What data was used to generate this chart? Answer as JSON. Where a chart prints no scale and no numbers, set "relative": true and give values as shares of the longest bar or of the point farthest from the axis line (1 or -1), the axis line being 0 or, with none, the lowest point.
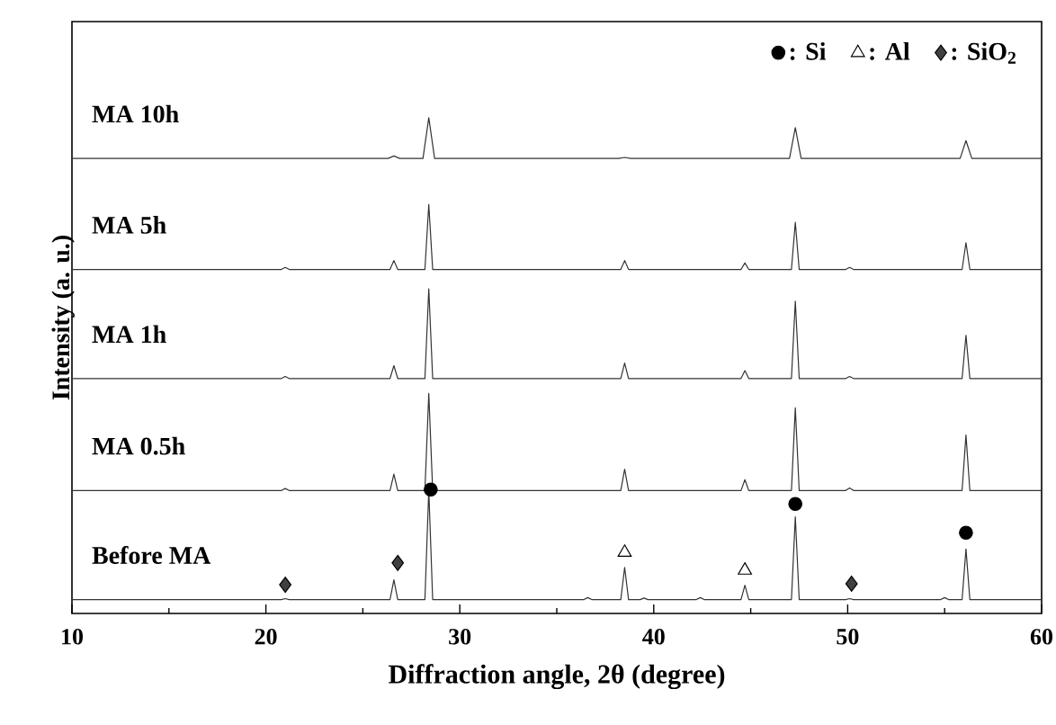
{
  "chart_data": {
    "type": "line",
    "relative": true,
    "xlabel": "Diffraction angle, 2θ (degree)",
    "ylabel": "Intensity (a. u.)",
    "xlim": [
      10,
      60
    ],
    "xticks": [
      10,
      20,
      30,
      40,
      50,
      60
    ],
    "legend": "top right",
    "grid": false,
    "series": [
      {
        "name": "MA 10h",
        "color": "#333333",
        "x": [
          10,
          26.3,
          26.6,
          26.9,
          28.1,
          28.4,
          28.7,
          38.2,
          38.5,
          38.8,
          47.0,
          47.3,
          47.6,
          55.8,
          56.1,
          56.4,
          60
        ],
        "values": [
          0.918,
          0.918,
          0.923,
          0.918,
          0.918,
          1.0,
          0.918,
          0.918,
          0.92,
          0.918,
          0.918,
          0.98,
          0.918,
          0.918,
          0.954,
          0.918,
          0.918
        ]
      },
      {
        "name": "MA 5h",
        "color": "#333333",
        "x": [
          10,
          20.8,
          21.0,
          21.2,
          26.4,
          26.6,
          26.8,
          28.2,
          28.4,
          28.6,
          38.3,
          38.5,
          38.7,
          44.5,
          44.7,
          44.9,
          47.1,
          47.3,
          47.5,
          49.9,
          50.1,
          50.3,
          55.9,
          56.1,
          56.3,
          60
        ],
        "values": [
          0.694,
          0.694,
          0.698,
          0.694,
          0.694,
          0.712,
          0.694,
          0.694,
          0.825,
          0.694,
          0.694,
          0.712,
          0.694,
          0.694,
          0.707,
          0.694,
          0.694,
          0.789,
          0.694,
          0.694,
          0.698,
          0.694,
          0.694,
          0.748,
          0.694,
          0.694
        ]
      },
      {
        "name": "MA 1h",
        "color": "#333333",
        "x": [
          10,
          20.8,
          21.0,
          21.2,
          26.4,
          26.6,
          26.8,
          28.2,
          28.4,
          28.6,
          38.3,
          38.5,
          38.7,
          44.5,
          44.7,
          44.9,
          47.1,
          47.3,
          47.5,
          49.9,
          50.1,
          50.3,
          55.9,
          56.1,
          56.3,
          60
        ],
        "values": [
          0.474,
          0.474,
          0.478,
          0.474,
          0.474,
          0.5,
          0.474,
          0.474,
          0.655,
          0.474,
          0.474,
          0.505,
          0.474,
          0.474,
          0.49,
          0.474,
          0.474,
          0.63,
          0.474,
          0.474,
          0.478,
          0.474,
          0.474,
          0.561,
          0.474,
          0.474
        ]
      },
      {
        "name": "MA 0.5h",
        "color": "#333333",
        "x": [
          10,
          20.8,
          21.0,
          21.2,
          26.4,
          26.6,
          26.8,
          28.2,
          28.4,
          28.6,
          38.3,
          38.5,
          38.7,
          44.5,
          44.7,
          44.9,
          47.1,
          47.3,
          47.5,
          49.9,
          50.1,
          50.3,
          55.9,
          56.1,
          56.3,
          60
        ],
        "values": [
          0.248,
          0.248,
          0.252,
          0.248,
          0.248,
          0.281,
          0.248,
          0.248,
          0.444,
          0.248,
          0.248,
          0.291,
          0.248,
          0.248,
          0.27,
          0.248,
          0.248,
          0.415,
          0.248,
          0.248,
          0.253,
          0.248,
          0.248,
          0.36,
          0.248,
          0.248
        ]
      },
      {
        "name": "Before MA",
        "color": "#333333",
        "x": [
          10,
          20.8,
          21.0,
          21.2,
          26.4,
          26.6,
          26.8,
          28.2,
          28.4,
          28.6,
          36.4,
          36.6,
          36.8,
          38.3,
          38.5,
          38.7,
          39.3,
          39.5,
          39.7,
          42.2,
          42.4,
          42.6,
          44.5,
          44.7,
          44.9,
          47.1,
          47.3,
          47.5,
          49.9,
          50.1,
          50.3,
          54.8,
          55.0,
          55.2,
          55.9,
          56.1,
          56.3,
          60
        ],
        "values": [
          0.028,
          0.028,
          0.03,
          0.028,
          0.028,
          0.068,
          0.028,
          0.028,
          0.249,
          0.028,
          0.028,
          0.032,
          0.028,
          0.028,
          0.093,
          0.028,
          0.028,
          0.031,
          0.028,
          0.028,
          0.032,
          0.028,
          0.028,
          0.057,
          0.028,
          0.028,
          0.195,
          0.028,
          0.028,
          0.03,
          0.028,
          0.028,
          0.032,
          0.028,
          0.028,
          0.13,
          0.028,
          0.028
        ]
      },
      {
        "name": ": Si",
        "type": "scatter",
        "marker": "circle",
        "color": "#000000",
        "x": [
          28.5,
          47.3,
          56.1
        ],
        "values": [
          0.25,
          0.221,
          0.163
        ]
      },
      {
        "name": ": Al",
        "type": "scatter",
        "marker": "triangle",
        "color": "#000000",
        "x": [
          38.5,
          44.7
        ],
        "values": [
          0.123,
          0.087
        ]
      },
      {
        "name": ": SiO$_{2}$",
        "type": "scatter",
        "marker": "diamond",
        "color": "#404040",
        "x": [
          21.0,
          26.8,
          50.2
        ],
        "values": [
          0.058,
          0.102,
          0.06
        ]
      }
    ]
  }
}
